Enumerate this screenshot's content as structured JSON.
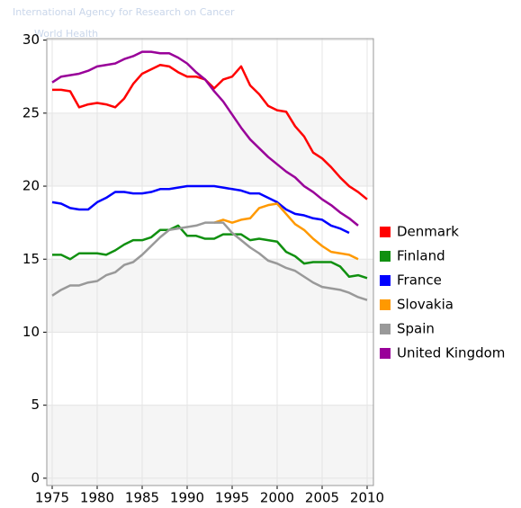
{
  "chart_data": {
    "type": "line",
    "annotations": [
      "International Agency for Research on Cancer",
      "World Health"
    ],
    "x": [
      1975,
      1976,
      1977,
      1978,
      1979,
      1980,
      1981,
      1982,
      1983,
      1984,
      1985,
      1986,
      1987,
      1988,
      1989,
      1990,
      1991,
      1992,
      1993,
      1994,
      1995,
      1996,
      1997,
      1998,
      1999,
      2000,
      2001,
      2002,
      2003,
      2004,
      2005,
      2006,
      2007,
      2008,
      2009,
      2010
    ],
    "xlim": [
      1974.4,
      2010.7
    ],
    "xticks": [
      1975,
      1980,
      1985,
      1990,
      1995,
      2000,
      2005,
      2010
    ],
    "ylim": [
      -0.5,
      30.1
    ],
    "yticks": [
      0,
      5,
      10,
      15,
      20,
      25,
      30
    ],
    "grid": true,
    "legend": "right",
    "series": [
      {
        "name": "Denmark",
        "color": "#ff0000",
        "values": [
          26.6,
          26.6,
          26.5,
          25.4,
          25.6,
          25.7,
          25.6,
          25.4,
          26.0,
          27.0,
          27.7,
          28.0,
          28.3,
          28.2,
          27.8,
          27.5,
          27.5,
          27.3,
          26.7,
          27.3,
          27.5,
          28.2,
          26.9,
          26.3,
          25.5,
          25.2,
          25.1,
          24.1,
          23.4,
          22.3,
          21.9,
          21.3,
          20.6,
          20.0,
          19.6,
          19.1
        ]
      },
      {
        "name": "Finland",
        "color": "#109010",
        "values": [
          15.3,
          15.3,
          15.0,
          15.4,
          15.4,
          15.4,
          15.3,
          15.6,
          16.0,
          16.3,
          16.3,
          16.5,
          17.0,
          17.0,
          17.3,
          16.6,
          16.6,
          16.4,
          16.4,
          16.7,
          16.7,
          16.7,
          16.3,
          16.4,
          16.3,
          16.2,
          15.5,
          15.2,
          14.7,
          14.8,
          14.8,
          14.8,
          14.5,
          13.8,
          13.9,
          13.7
        ]
      },
      {
        "name": "France",
        "color": "#0000ff",
        "values": [
          18.9,
          18.8,
          18.5,
          18.4,
          18.4,
          18.9,
          19.2,
          19.6,
          19.6,
          19.5,
          19.5,
          19.6,
          19.8,
          19.8,
          19.9,
          20.0,
          20.0,
          20.0,
          20.0,
          19.9,
          19.8,
          19.7,
          19.5,
          19.5,
          19.2,
          18.9,
          18.4,
          18.1,
          18.0,
          17.8,
          17.7,
          17.3,
          17.1,
          16.8,
          null,
          null
        ]
      },
      {
        "name": "Slovakia",
        "color": "#ff9900",
        "values": [
          null,
          null,
          null,
          null,
          null,
          null,
          null,
          null,
          null,
          null,
          null,
          null,
          null,
          null,
          null,
          null,
          null,
          null,
          17.5,
          17.7,
          17.5,
          17.7,
          17.8,
          18.5,
          18.7,
          18.8,
          18.1,
          17.4,
          17.0,
          16.4,
          15.9,
          15.5,
          15.4,
          15.3,
          15.0,
          null
        ]
      },
      {
        "name": "Spain",
        "color": "#999999",
        "values": [
          12.5,
          12.9,
          13.2,
          13.2,
          13.4,
          13.5,
          13.9,
          14.1,
          14.6,
          14.8,
          15.3,
          15.9,
          16.5,
          17.0,
          17.1,
          17.2,
          17.3,
          17.5,
          17.5,
          17.5,
          16.8,
          16.3,
          15.8,
          15.4,
          14.9,
          14.7,
          14.4,
          14.2,
          13.8,
          13.4,
          13.1,
          13.0,
          12.9,
          12.7,
          12.4,
          12.2
        ]
      },
      {
        "name": "United Kingdom",
        "color": "#990099",
        "values": [
          27.1,
          27.5,
          27.6,
          27.7,
          27.9,
          28.2,
          28.3,
          28.4,
          28.7,
          28.9,
          29.2,
          29.2,
          29.1,
          29.1,
          28.8,
          28.4,
          27.8,
          27.3,
          26.5,
          25.8,
          24.9,
          24.0,
          23.2,
          22.6,
          22.0,
          21.5,
          21.0,
          20.6,
          20.0,
          19.6,
          19.1,
          18.7,
          18.2,
          17.8,
          17.3,
          null
        ]
      }
    ]
  }
}
